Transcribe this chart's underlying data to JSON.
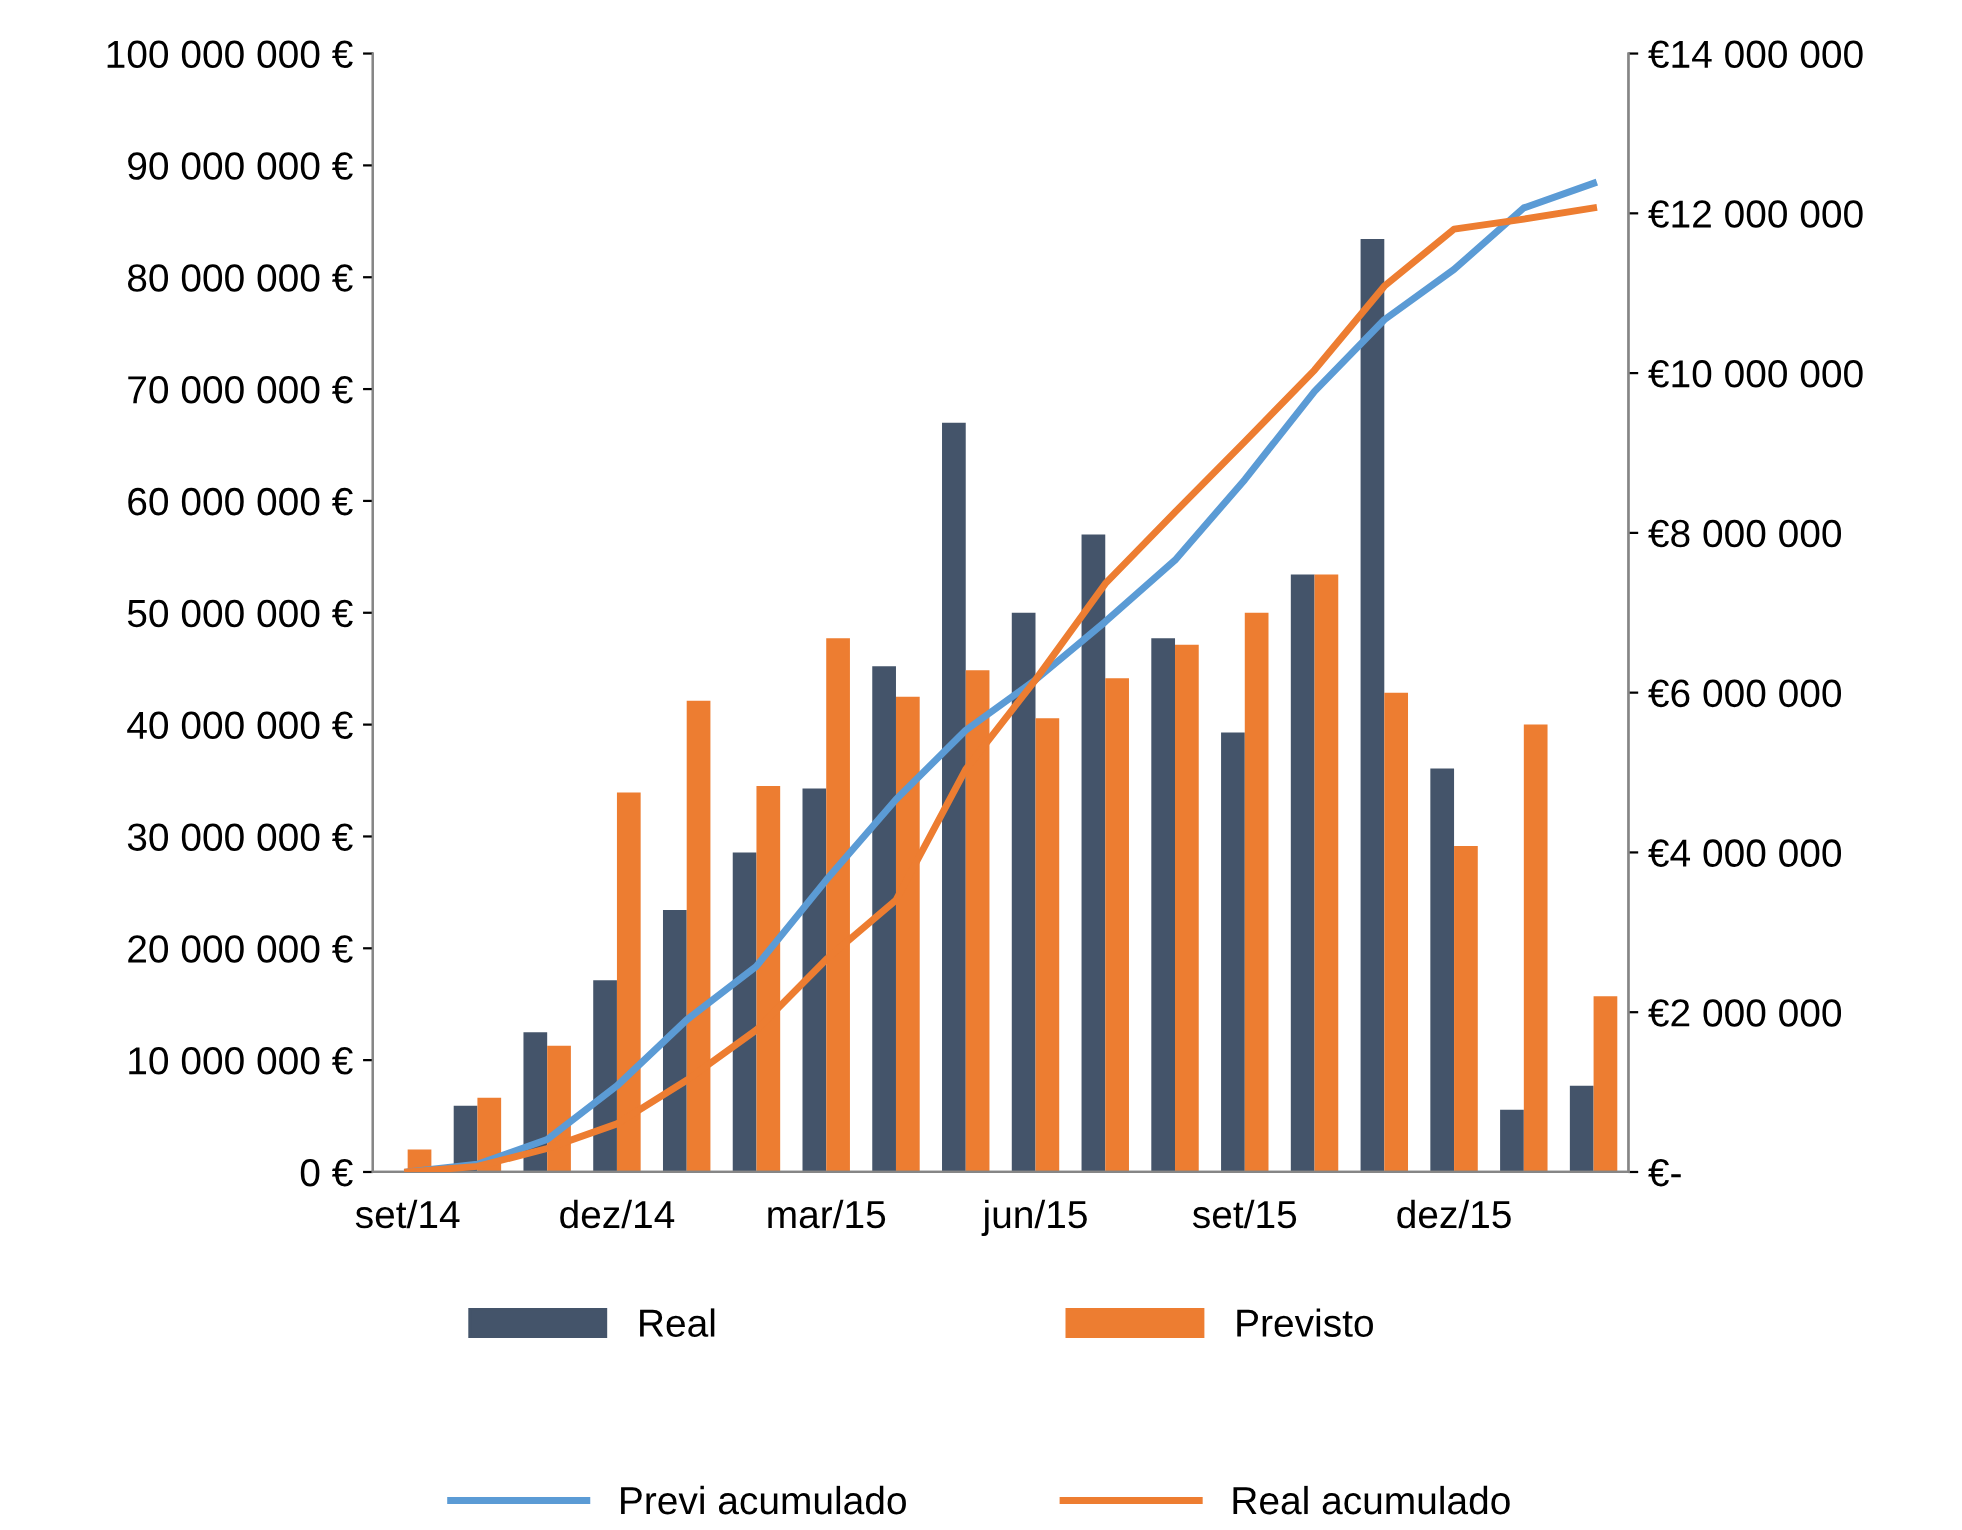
{
  "chart_data": {
    "type": "bar",
    "categories": [
      "set/14",
      null,
      null,
      "dez/14",
      null,
      null,
      "mar/15",
      null,
      null,
      "jun/15",
      null,
      null,
      "set/15",
      null,
      null,
      "dez/15",
      null,
      null
    ],
    "series": [
      {
        "name": "Real",
        "axis": "y2",
        "color": "#44546a",
        "values": [
          0,
          830000,
          1750000,
          2400000,
          3280000,
          4000000,
          4800000,
          6330000,
          9380000,
          7000000,
          7980000,
          6680000,
          5500000,
          7480000,
          11680000,
          5050000,
          780000,
          1080000
        ]
      },
      {
        "name": "Previsto",
        "axis": "y2",
        "color": "#ed7d31",
        "values": [
          280000,
          930000,
          1580000,
          4750000,
          5900000,
          4830000,
          6680000,
          5950000,
          6280000,
          5680000,
          6180000,
          6600000,
          7000000,
          7480000,
          6000000,
          4080000,
          5600000,
          2200000
        ]
      },
      {
        "name": "Previ acumulado",
        "type": "line",
        "color": "#5b9bd5",
        "values": [
          0,
          700000,
          2900000,
          7700000,
          13600000,
          18400000,
          26100000,
          33300000,
          39500000,
          44000000,
          49200000,
          54700000,
          61900000,
          69800000,
          76200000,
          80700000,
          86200000,
          88400000
        ]
      },
      {
        "name": "Real acumulado",
        "type": "line",
        "color": "#ed7d31",
        "values": [
          0,
          500000,
          2100000,
          4300000,
          8200000,
          12700000,
          19000000,
          24300000,
          36000000,
          44000000,
          52600000,
          59000000,
          65300000,
          71700000,
          79200000,
          84300000,
          85200000,
          86200000
        ]
      }
    ],
    "ylim": [
      0,
      100000000
    ],
    "yticks": [
      {
        "value": 0,
        "label": "0 €"
      },
      {
        "value": 10000000,
        "label": "10 000 000 €"
      },
      {
        "value": 20000000,
        "label": "20 000 000 €"
      },
      {
        "value": 30000000,
        "label": "30 000 000 €"
      },
      {
        "value": 40000000,
        "label": "40 000 000 €"
      },
      {
        "value": 50000000,
        "label": "50 000 000 €"
      },
      {
        "value": 60000000,
        "label": "60 000 000 €"
      },
      {
        "value": 70000000,
        "label": "70 000 000 €"
      },
      {
        "value": 80000000,
        "label": "80 000 000 €"
      },
      {
        "value": 90000000,
        "label": "90 000 000 €"
      },
      {
        "value": 100000000,
        "label": "100 000 000 €"
      }
    ],
    "y2lim": [
      0,
      14000000
    ],
    "y2ticks": [
      {
        "value": 0,
        "label": "€-"
      },
      {
        "value": 2000000,
        "label": "€2 000 000"
      },
      {
        "value": 4000000,
        "label": "€4 000 000"
      },
      {
        "value": 6000000,
        "label": "€6 000 000"
      },
      {
        "value": 8000000,
        "label": "€8 000 000"
      },
      {
        "value": 10000000,
        "label": "€10 000 000"
      },
      {
        "value": 12000000,
        "label": "€12 000 000"
      },
      {
        "value": 14000000,
        "label": "€14 000 000"
      }
    ],
    "grid": false,
    "legend": "bottom",
    "marker": "none",
    "line_style": "solid"
  }
}
